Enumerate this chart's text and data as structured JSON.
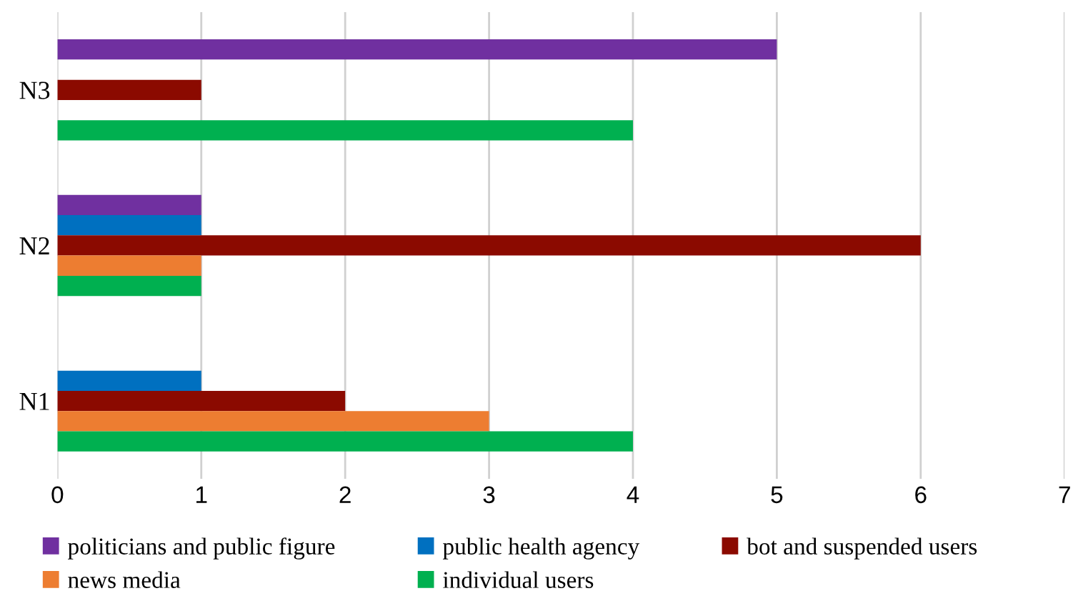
{
  "chart_data": {
    "type": "bar",
    "orientation": "horizontal",
    "categories": [
      "N3",
      "N2",
      "N1"
    ],
    "series": [
      {
        "name": "politicians and public figure",
        "color": "#7030a0",
        "values": [
          5,
          1,
          0
        ]
      },
      {
        "name": "public health agency",
        "color": "#0070c0",
        "values": [
          0,
          1,
          1
        ]
      },
      {
        "name": "bot and suspended users",
        "color": "#8b0a00",
        "values": [
          1,
          6,
          2
        ]
      },
      {
        "name": "news media",
        "color": "#ed7d31",
        "values": [
          0,
          1,
          3
        ]
      },
      {
        "name": "individual users",
        "color": "#00b050",
        "values": [
          4,
          1,
          4
        ]
      }
    ],
    "xlim": [
      0,
      7
    ],
    "xticks": [
      0,
      1,
      2,
      3,
      4,
      5,
      6,
      7
    ],
    "grid": "x",
    "legend": "bottom"
  }
}
